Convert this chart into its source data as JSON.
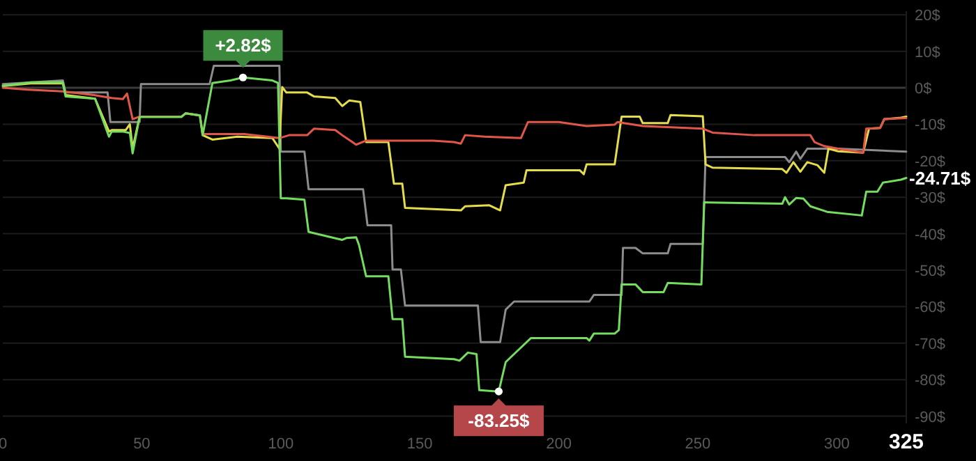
{
  "chart_data": {
    "type": "line",
    "xlim": [
      0,
      325
    ],
    "ylim": [
      -92,
      21
    ],
    "xticks": [
      0,
      50,
      100,
      150,
      200,
      250,
      300,
      325
    ],
    "yticks": [
      {
        "value": 20,
        "label": "20$"
      },
      {
        "value": 10,
        "label": "10$"
      },
      {
        "value": 0,
        "label": "0$"
      },
      {
        "value": -10,
        "label": "-10$"
      },
      {
        "value": -20,
        "label": "-20$"
      },
      {
        "value": -30,
        "label": "-30$"
      },
      {
        "value": -40,
        "label": "-40$"
      },
      {
        "value": -50,
        "label": "-50$"
      },
      {
        "value": -60,
        "label": "-60$"
      },
      {
        "value": -70,
        "label": "-70$"
      },
      {
        "value": -80,
        "label": "-80$"
      },
      {
        "value": -90,
        "label": "-90$"
      }
    ],
    "grid": "y",
    "series": [
      {
        "color": "#8c8c8c",
        "x": [
          0,
          21.6,
          22.6,
          37.7,
          38.7,
          49.2,
          49.7,
          74.4,
          75.9,
          99.5,
          100,
          108.5,
          110,
          129.6,
          131.2,
          139.7,
          140.2,
          143.2,
          144.7,
          170.9,
          171.9,
          178.9,
          180.9,
          183.9,
          211,
          212.6,
          222.6,
          223.1,
          227.6,
          230.2,
          239.2,
          240.2,
          251.8,
          252.8,
          281.4,
          282.9,
          285.4,
          286.9,
          289.4,
          300.5,
          325
        ],
        "values": [
          1,
          2,
          -1.3,
          -1.3,
          -9.4,
          -9.4,
          1,
          1,
          6,
          6,
          -17.5,
          -17.5,
          -27.8,
          -27.8,
          -37.7,
          -37.7,
          -49.8,
          -49.8,
          -59.7,
          -59.7,
          -69.7,
          -69.7,
          -60.8,
          -58.6,
          -58.6,
          -56.8,
          -56.8,
          -43.9,
          -43.9,
          -45.4,
          -45.4,
          -42.8,
          -42.8,
          -19,
          -19,
          -20.4,
          -17.5,
          -19.5,
          -16.7,
          -16.7,
          -17.5
        ]
      },
      {
        "color": "#e4dc4c",
        "x": [
          0,
          10,
          21.6,
          22.6,
          33.2,
          38.2,
          39.2,
          44.2,
          45.7,
          46.7,
          49.2,
          64.3,
          65.8,
          70.9,
          71.9,
          75.4,
          84.4,
          97,
          99.5,
          100.5,
          102,
          109.5,
          112,
          119.6,
          122.1,
          124.6,
          128.6,
          130.7,
          138.7,
          140.7,
          143.7,
          144.7,
          164.8,
          166.3,
          174.9,
          178.9,
          180.9,
          187.4,
          188.4,
          207.5,
          209,
          210,
          220.1,
          222.6,
          229.1,
          230.2,
          239.2,
          240.2,
          251.8,
          252.8,
          255.3,
          280.4,
          281.9,
          284.4,
          286.9,
          289.4,
          293,
          295.5,
          297,
          300.5,
          309.5,
          311.6,
          315.6,
          317.1,
          323.1,
          325
        ],
        "values": [
          0.5,
          1.2,
          1.2,
          -2,
          -3,
          -12,
          -11.6,
          -11.6,
          -10,
          -16.7,
          -7.9,
          -7.9,
          -7,
          -7.6,
          -13,
          -14.2,
          -13.4,
          -13.8,
          -16.7,
          0.2,
          -1.3,
          -1.3,
          -2.4,
          -2.8,
          -5,
          -3.5,
          -3.9,
          -14.9,
          -14.9,
          -26.3,
          -26.3,
          -32.9,
          -33.6,
          -32.5,
          -32.2,
          -33.6,
          -26.7,
          -26,
          -22.6,
          -22.6,
          -23.7,
          -21,
          -21,
          -7.9,
          -7.9,
          -9.7,
          -9.7,
          -7.5,
          -7.8,
          -21,
          -21.9,
          -22.3,
          -23.3,
          -20.4,
          -23,
          -20.4,
          -21.2,
          -23.3,
          -16.7,
          -17.4,
          -17.8,
          -11.2,
          -11,
          -8.6,
          -8.2,
          -7.9
        ]
      },
      {
        "color": "#e0574a",
        "x": [
          0,
          9,
          21.6,
          32.7,
          39.2,
          43.2,
          44.7,
          46.7,
          49.2,
          64.3,
          65.8,
          70.9,
          71.9,
          86.9,
          99.5,
          103,
          109.5,
          112,
          119.6,
          122.1,
          127.1,
          130.7,
          154.8,
          162.3,
          164.8,
          166.3,
          173.4,
          186.4,
          188.9,
          200,
          210,
          220.1,
          221.1,
          230.2,
          251.8,
          255.3,
          270.4,
          290.5,
          292,
          295.5,
          300.5,
          309.5,
          310.6,
          315.6,
          317.1,
          325
        ],
        "values": [
          0,
          -0.5,
          -1,
          -2,
          -2.8,
          -3.1,
          -1.6,
          -8.6,
          -7.9,
          -7.9,
          -7,
          -7.6,
          -12.7,
          -12.7,
          -13.8,
          -13,
          -13,
          -11.2,
          -11.6,
          -13,
          -15.6,
          -14.5,
          -14.5,
          -14.9,
          -15.3,
          -13,
          -13.4,
          -13.8,
          -9.4,
          -9.4,
          -10.5,
          -10.1,
          -9.4,
          -10.5,
          -11.2,
          -12.3,
          -13,
          -13,
          -14.9,
          -16,
          -16.7,
          -17.8,
          -11.2,
          -11,
          -8.6,
          -8.3
        ]
      },
      {
        "color": "#74dc5e",
        "x": [
          0,
          10,
          21.6,
          22.6,
          33.2,
          38.2,
          39.2,
          43.2,
          45.7,
          46.7,
          49.2,
          64.3,
          65.8,
          70.9,
          71.9,
          75.4,
          81.9,
          86.4,
          97,
          99,
          100,
          102,
          108.5,
          110,
          122.1,
          123.6,
          127.1,
          128.1,
          130.7,
          138.7,
          140.2,
          143.7,
          144.7,
          162.3,
          164.3,
          167.3,
          170.4,
          171.4,
          178.4,
          180.9,
          183.9,
          190,
          210,
          211,
          212.6,
          220.1,
          221.6,
          222.6,
          227.6,
          230.2,
          237.7,
          239.2,
          251.3,
          252.3,
          280.4,
          281.4,
          282.9,
          285.4,
          288,
          290.5,
          296.5,
          309,
          310.6,
          314.6,
          316.6,
          323.1,
          325
        ],
        "values": [
          0.5,
          1.5,
          1.5,
          -2.4,
          -3,
          -13.4,
          -12,
          -12,
          -12.4,
          -18,
          -8,
          -8,
          -7,
          -7.6,
          -13,
          1.3,
          2,
          2.82,
          2,
          1.3,
          -30.3,
          -30.3,
          -30.7,
          -39.5,
          -41.7,
          -41.2,
          -41,
          -43,
          -51.7,
          -51.7,
          -63.4,
          -63.4,
          -73.7,
          -74.4,
          -74.8,
          -72.6,
          -73,
          -82.9,
          -83.25,
          -75.2,
          -73,
          -68.6,
          -68.6,
          -69.3,
          -67.4,
          -67.4,
          -66.4,
          -53.9,
          -53.9,
          -56,
          -56,
          -53.5,
          -53.9,
          -31.4,
          -31.8,
          -30,
          -32,
          -30.2,
          -30.4,
          -32.5,
          -34,
          -35,
          -28.5,
          -28.5,
          -26,
          -25.2,
          -24.71
        ]
      }
    ],
    "annotations": [
      {
        "text": "+2.82$",
        "x": 86.4,
        "y": 2.82
      },
      {
        "text": "-83.25$",
        "x": 178.4,
        "y": -83.25
      },
      {
        "text": "-24.71$",
        "x": 325,
        "y": -24.71
      }
    ]
  }
}
